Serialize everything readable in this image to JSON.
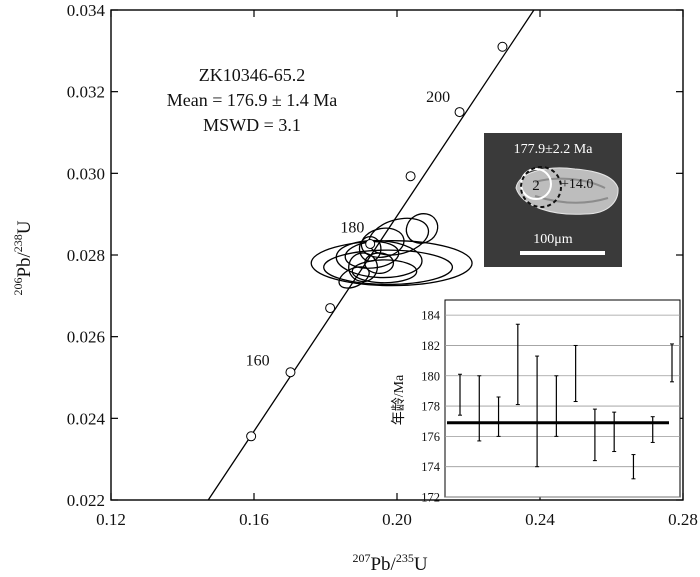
{
  "chart_data": {
    "type": "scatter",
    "main": {
      "x_range": [
        0.12,
        0.28
      ],
      "y_range": [
        0.022,
        0.034
      ],
      "x_ticks": [
        0.12,
        0.16,
        0.2,
        0.24,
        0.28
      ],
      "y_ticks": [
        0.022,
        0.024,
        0.026,
        0.028,
        0.03,
        0.032,
        0.034
      ],
      "x_tick_labels": [
        "0.12",
        "0.16",
        "0.20",
        "0.24",
        "0.28"
      ],
      "y_tick_labels": [
        "0.022",
        "0.024",
        "0.026",
        "0.028",
        "0.030",
        "0.032",
        "0.034"
      ],
      "xlabel": {
        "sup1": "207",
        "base1": "Pb/",
        "sup2": "235",
        "base2": "U"
      },
      "ylabel": {
        "sup1": "206",
        "base1": "Pb/",
        "sup2": "238",
        "base2": "U"
      },
      "annotation": {
        "line1": "ZK10346-65.2",
        "line2": "Mean = 176.9 ± 1.4 Ma",
        "line3": "MSWD = 3.1"
      },
      "concordia_points": [
        {
          "x": 0.1592,
          "y": 0.02356
        },
        {
          "x": 0.1702,
          "y": 0.02513
        },
        {
          "x": 0.1813,
          "y": 0.0267
        },
        {
          "x": 0.1925,
          "y": 0.02827
        },
        {
          "x": 0.2038,
          "y": 0.02993
        },
        {
          "x": 0.2175,
          "y": 0.0315
        },
        {
          "x": 0.2295,
          "y": 0.0331
        }
      ],
      "concordia_line": {
        "x1": 0.1472,
        "y1": 0.022,
        "x2": 0.2383,
        "y2": 0.034
      },
      "age_labels": [
        {
          "text": "160",
          "x": 0.161,
          "y": 0.0253
        },
        {
          "text": "180",
          "x": 0.1875,
          "y": 0.02855
        },
        {
          "text": "200",
          "x": 0.2115,
          "y": 0.03175
        }
      ],
      "ellipses": [
        {
          "cx": 0.1985,
          "cy": 0.0278,
          "rx": 0.0225,
          "ry": 0.00055,
          "rot": 0
        },
        {
          "cx": 0.1975,
          "cy": 0.0277,
          "rx": 0.018,
          "ry": 0.00042,
          "rot": 0
        },
        {
          "cx": 0.195,
          "cy": 0.0279,
          "rx": 0.012,
          "ry": 0.00045,
          "rot": -3
        },
        {
          "cx": 0.193,
          "cy": 0.028,
          "rx": 0.0075,
          "ry": 0.00032,
          "rot": 5
        },
        {
          "cx": 0.196,
          "cy": 0.0283,
          "rx": 0.006,
          "ry": 0.00035,
          "rot": 10
        },
        {
          "cx": 0.2005,
          "cy": 0.02845,
          "rx": 0.0085,
          "ry": 0.00042,
          "rot": 15
        },
        {
          "cx": 0.195,
          "cy": 0.0278,
          "rx": 0.004,
          "ry": 0.00025,
          "rot": 0
        },
        {
          "cx": 0.1905,
          "cy": 0.0277,
          "rx": 0.004,
          "ry": 0.00035,
          "rot": 30
        },
        {
          "cx": 0.1925,
          "cy": 0.02815,
          "rx": 0.003,
          "ry": 0.0003,
          "rot": 0
        },
        {
          "cx": 0.207,
          "cy": 0.02865,
          "rx": 0.0045,
          "ry": 0.00035,
          "rot": 30
        },
        {
          "cx": 0.188,
          "cy": 0.02745,
          "rx": 0.0045,
          "ry": 0.00022,
          "rot": 25
        },
        {
          "cx": 0.1965,
          "cy": 0.0276,
          "rx": 0.009,
          "ry": 0.00028,
          "rot": 0
        }
      ]
    },
    "inset": {
      "type": "bar",
      "ylabel": "年龄/Ma",
      "y_range": [
        172,
        185
      ],
      "y_ticks": [
        172,
        174,
        176,
        178,
        180,
        182,
        184
      ],
      "y_tick_labels": [
        "172",
        "174",
        "176",
        "178",
        "180",
        "182",
        "184"
      ],
      "mean": 176.9,
      "bars": [
        {
          "low": 177.4,
          "high": 180.1
        },
        {
          "low": 175.7,
          "high": 180.0
        },
        {
          "low": 176.0,
          "high": 178.6
        },
        {
          "low": 178.1,
          "high": 183.4
        },
        {
          "low": 174.0,
          "high": 181.3
        },
        {
          "low": 176.0,
          "high": 180.0
        },
        {
          "low": 178.3,
          "high": 182.0
        },
        {
          "low": 174.4,
          "high": 177.8
        },
        {
          "low": 175.0,
          "high": 177.6
        },
        {
          "low": 173.2,
          "high": 174.8
        },
        {
          "low": 175.6,
          "high": 177.3
        },
        {
          "low": 179.6,
          "high": 182.1
        }
      ]
    },
    "zircon_image": {
      "age_text": "177.9±2.2 Ma",
      "spot_label": "2",
      "epsilon_text": "+14.0",
      "scale_text": "100μm",
      "background": "#3a3a3a"
    }
  }
}
